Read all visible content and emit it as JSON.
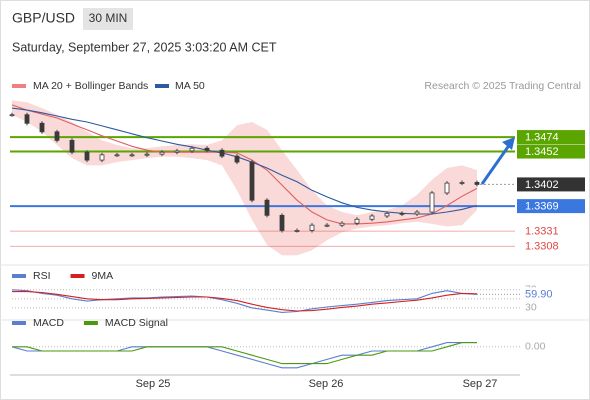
{
  "header": {
    "symbol": "GBP/USD",
    "interval": "30 MIN",
    "timestamp": "Saturday, September 27, 2025 3:03:20 AM CET",
    "credit": "Research © 2025 Trading Central"
  },
  "chart_data": [
    {
      "type": "candlestick",
      "legend": [
        "MA 20 + Bollinger Bands",
        "MA 50"
      ],
      "ylim": [
        1.3284,
        1.3538
      ],
      "xticks": [
        "Sep 25",
        "Sep 26",
        "Sep 27"
      ],
      "values": [
        1.3508,
        1.3495,
        1.3482,
        1.3469,
        1.3451,
        1.3439,
        1.3447,
        1.3447,
        1.3447,
        1.3448,
        1.3451,
        1.3453,
        1.3457,
        1.3454,
        1.3445,
        1.3436,
        1.3378,
        1.3355,
        1.3332,
        1.3332,
        1.334,
        1.334,
        1.3343,
        1.3349,
        1.3354,
        1.3358,
        1.3357,
        1.336,
        1.3389,
        1.3404,
        1.3405,
        1.3402
      ],
      "color": "#3a3a3a",
      "series": [
        {
          "name": "MA 20",
          "color": "#e06060",
          "values": [
            1.3523,
            1.3515,
            1.3509,
            1.3503,
            1.3494,
            1.3485,
            1.3476,
            1.3468,
            1.346,
            1.3454,
            1.3451,
            1.3451,
            1.3451,
            1.3451,
            1.3451,
            1.345,
            1.3439,
            1.3424,
            1.3401,
            1.3378,
            1.336,
            1.3348,
            1.3342,
            1.3342,
            1.3343,
            1.3345,
            1.3348,
            1.3351,
            1.3357,
            1.337,
            1.3384,
            1.3396
          ]
        },
        {
          "name": "MA 50",
          "color": "#2d5aa0",
          "values": [
            1.3518,
            1.3515,
            1.3511,
            1.3506,
            1.3501,
            1.3497,
            1.3491,
            1.3485,
            1.3479,
            1.3473,
            1.3468,
            1.3463,
            1.3459,
            1.3454,
            1.345,
            1.3444,
            1.3436,
            1.3427,
            1.3416,
            1.3406,
            1.3393,
            1.3383,
            1.3374,
            1.3367,
            1.3363,
            1.336,
            1.3358,
            1.3357,
            1.3357,
            1.336,
            1.3364,
            1.337
          ]
        }
      ],
      "bands": {
        "color": "#f9d0d0",
        "upper": [
          1.353,
          1.3527,
          1.3518,
          1.3508,
          1.3497,
          1.3482,
          1.3469,
          1.3462,
          1.3457,
          1.3457,
          1.346,
          1.3462,
          1.3463,
          1.3462,
          1.3469,
          1.3492,
          1.3497,
          1.3485,
          1.3454,
          1.3424,
          1.3393,
          1.337,
          1.336,
          1.3355,
          1.336,
          1.3363,
          1.337,
          1.3386,
          1.3409,
          1.3427,
          1.3431,
          1.3424
        ],
        "lower": [
          1.3508,
          1.3497,
          1.3482,
          1.3462,
          1.3442,
          1.3431,
          1.3431,
          1.3436,
          1.3439,
          1.3442,
          1.3444,
          1.3444,
          1.3442,
          1.3439,
          1.3431,
          1.3393,
          1.3348,
          1.331,
          1.3294,
          1.3294,
          1.3302,
          1.3317,
          1.3329,
          1.3335,
          1.3338,
          1.334,
          1.3343,
          1.3345,
          1.3342,
          1.3338,
          1.334,
          1.3363
        ]
      },
      "levels": [
        {
          "value": 1.3474,
          "color": "#5aa500",
          "boxed": true
        },
        {
          "value": 1.3452,
          "color": "#5aa500",
          "boxed": true
        },
        {
          "value": 1.3402,
          "color": "#333333",
          "boxed": true,
          "dotted": true
        },
        {
          "value": 1.3369,
          "color": "#3a78e0",
          "boxed": true
        },
        {
          "value": 1.3331,
          "color": "#e04848",
          "boxed": false
        },
        {
          "value": 1.3308,
          "color": "#e04848",
          "boxed": false
        }
      ]
    },
    {
      "type": "line",
      "ylim": [
        12,
        85
      ],
      "yticks": [
        30,
        50,
        70
      ],
      "series": [
        {
          "name": "RSI",
          "color": "#5a7fd0",
          "values": [
            70,
            68,
            62,
            58,
            50,
            45,
            48,
            50,
            52,
            52,
            54,
            55,
            56,
            54,
            48,
            40,
            30,
            25,
            20,
            22,
            28,
            32,
            35,
            38,
            42,
            46,
            48,
            50,
            62,
            68,
            62,
            59.9
          ],
          "value_labels": [
            null,
            null,
            null,
            null,
            null,
            null,
            null,
            null,
            null,
            null,
            null,
            null,
            null,
            null,
            null,
            null,
            null,
            null,
            null,
            null,
            null,
            null,
            null,
            null,
            null,
            null,
            null,
            null,
            null,
            null,
            null,
            "59.90"
          ]
        },
        {
          "name": "9MA",
          "color": "#d42020",
          "values": [
            66,
            66,
            64,
            60,
            55,
            50,
            48,
            48,
            50,
            51,
            52,
            53,
            54,
            54,
            51,
            46,
            38,
            31,
            26,
            23,
            24,
            27,
            31,
            34,
            38,
            41,
            44,
            47,
            52,
            58,
            62,
            61
          ]
        }
      ]
    },
    {
      "type": "line",
      "ylim": [
        -0.0006,
        0.0004
      ],
      "yticks": [
        {
          "value": 0,
          "label": "0.00"
        }
      ],
      "series": [
        {
          "name": "MACD",
          "color": "#5a7fd0",
          "values": [
            0,
            -0.0001,
            -0.0001,
            -0.0001,
            -0.0001,
            -0.0001,
            -0.0001,
            -0.0001,
            0,
            0,
            0,
            0,
            0,
            0,
            -0.0001,
            -0.0002,
            -0.0003,
            -0.0004,
            -0.0005,
            -0.0005,
            -0.0004,
            -0.0003,
            -0.0002,
            -0.0002,
            -0.0001,
            -0.0001,
            -0.0001,
            -0.0001,
            0,
            0.0001,
            0.0001,
            0.0001
          ]
        },
        {
          "name": "MACD Signal",
          "color": "#4a9a10",
          "values": [
            0,
            0,
            -0.0001,
            -0.0001,
            -0.0001,
            -0.0001,
            -0.0001,
            -0.0001,
            -0.0001,
            0,
            0,
            0,
            0,
            0,
            0,
            -0.0001,
            -0.0002,
            -0.0003,
            -0.0004,
            -0.0004,
            -0.0004,
            -0.0004,
            -0.0003,
            -0.0002,
            -0.0002,
            -0.0001,
            -0.0001,
            -0.0001,
            -0.0001,
            0,
            0.0001,
            0.0001
          ]
        }
      ]
    }
  ]
}
